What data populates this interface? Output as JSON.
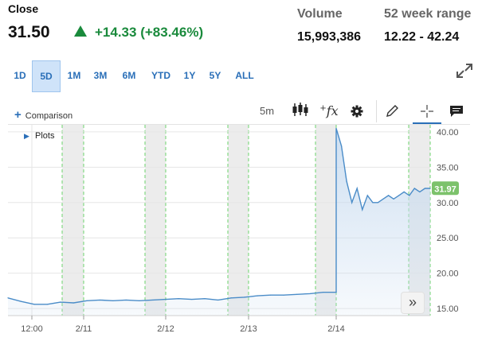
{
  "quote": {
    "close_label": "Close",
    "price": "31.50",
    "change": "+14.33 (+83.46%)",
    "change_color": "#1a8a3c",
    "volume_label": "Volume",
    "volume_value": "15,993,386",
    "range_label": "52 week range",
    "range_value": "12.22 - 42.24"
  },
  "ranges": [
    {
      "label": "1D",
      "active": false
    },
    {
      "label": "5D",
      "active": true
    },
    {
      "label": "1M",
      "active": false
    },
    {
      "label": "3M",
      "active": false
    },
    {
      "label": "6M",
      "active": false
    },
    {
      "label": "YTD",
      "active": false
    },
    {
      "label": "1Y",
      "active": false
    },
    {
      "label": "5Y",
      "active": false
    },
    {
      "label": "ALL",
      "active": false
    }
  ],
  "toolbar": {
    "comparison_label": "Comparison",
    "interval_label": "5m",
    "fx_label": "fx",
    "plots_label": "Plots",
    "icons": [
      "candlestick-icon",
      "fx-icon",
      "gear-icon",
      "pencil-icon",
      "crosshair-icon",
      "comment-icon",
      "expand-icon"
    ]
  },
  "chart_data": {
    "type": "line",
    "ylim": [
      14,
      41
    ],
    "y_ticks": [
      "15.00",
      "20.00",
      "25.00",
      "30.00",
      "35.00",
      "40.00"
    ],
    "x_tick_labels": [
      "12:00",
      "2/11",
      "2/12",
      "2/13",
      "2/14"
    ],
    "last_value_label": "31.97",
    "colors": {
      "line": "#4a8cc8",
      "fill_top": "#c9dcf0",
      "gap_shade": "#ececec",
      "gap_border": "#6cd36c",
      "last_badge": "#7cc26b"
    },
    "series": [
      {
        "values": [
          16.5,
          16.0,
          15.6,
          15.6,
          15.9,
          15.8,
          16.1,
          16.2,
          16.1,
          16.2,
          16.1,
          16.2,
          16.3,
          16.4,
          16.3,
          16.4,
          16.2,
          16.5,
          16.6,
          16.8,
          16.9,
          16.9,
          17.0,
          17.1,
          17.3,
          17.3,
          40.5,
          38.0,
          33.0,
          30.0,
          32.0,
          29.0,
          31.0,
          30.0,
          30.0,
          30.5,
          31.0,
          30.5,
          31.0,
          31.5,
          31.0,
          32.0,
          31.5,
          32.0,
          32.0
        ]
      }
    ]
  }
}
